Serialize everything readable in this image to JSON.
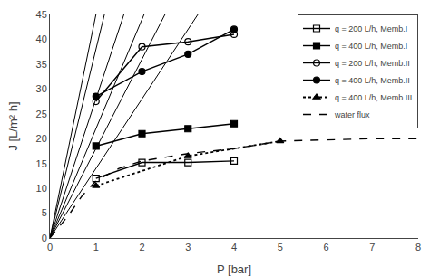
{
  "chart_data": {
    "type": "line",
    "xlabel": "P [bar]",
    "ylabel": "J [L/m² h]",
    "xlim": [
      0,
      8
    ],
    "ylim": [
      0,
      45
    ],
    "xticks": [
      0,
      1,
      2,
      3,
      4,
      5,
      6,
      7,
      8
    ],
    "yticks": [
      0,
      5,
      10,
      15,
      20,
      25,
      30,
      35,
      40,
      45
    ],
    "grid": false,
    "legend": "upper right",
    "series": [
      {
        "name": "q = 200 L/h, Memb.I",
        "x": [
          1,
          2,
          3,
          4
        ],
        "values": [
          12,
          15.2,
          15.2,
          15.5
        ],
        "color": "black",
        "marker": "square-open",
        "line_style": "solid"
      },
      {
        "name": "q = 400 L/h, Memb.I",
        "x": [
          1,
          2,
          3,
          4
        ],
        "values": [
          18.5,
          21,
          22,
          23
        ],
        "color": "black",
        "marker": "square",
        "line_style": "solid"
      },
      {
        "name": "q = 200 L/h, Memb.II",
        "x": [
          1,
          2,
          3,
          4
        ],
        "values": [
          27.5,
          38.5,
          39.5,
          41
        ],
        "color": "black",
        "marker": "circle-open",
        "line_style": "solid"
      },
      {
        "name": "q = 400 L/h, Memb.II",
        "x": [
          1,
          2,
          3,
          4
        ],
        "values": [
          28.5,
          33.5,
          37,
          42
        ],
        "color": "black",
        "marker": "circle",
        "line_style": "solid"
      },
      {
        "name": "q = 400 L/h, Memb.III",
        "x": [
          1,
          3,
          5
        ],
        "values": [
          10.5,
          16.5,
          19.5
        ],
        "color": "black",
        "marker": "triangle-up",
        "line_style": "dotted"
      },
      {
        "name": "water flux",
        "x": [
          0.0,
          0.4,
          0.7,
          1.0,
          1.5,
          2.0,
          3.0,
          4.0,
          5.0,
          6.0,
          7.0,
          8.0
        ],
        "values": [
          0.0,
          4.5,
          8.5,
          11.5,
          14.0,
          15.5,
          17.0,
          18.0,
          19.5,
          19.8,
          20.0,
          20.0
        ],
        "color": "black",
        "line_style": "dashed"
      },
      {
        "x": [
          0,
          1
        ],
        "values": [
          0,
          45
        ],
        "color": "black",
        "line_style": "solid"
      },
      {
        "x": [
          0,
          1.1842105263157894
        ],
        "values": [
          0,
          45
        ],
        "color": "black",
        "line_style": "solid"
      },
      {
        "x": [
          0,
          1.6071428571428572
        ],
        "values": [
          0,
          45
        ],
        "color": "black",
        "line_style": "solid"
      },
      {
        "x": [
          0,
          2.0454545454545454
        ],
        "values": [
          0,
          45
        ],
        "color": "black",
        "line_style": "solid"
      },
      {
        "x": [
          0,
          2.5
        ],
        "values": [
          0,
          45
        ],
        "color": "black",
        "line_style": "solid"
      },
      {
        "x": [
          0,
          3.2142857142857144
        ],
        "values": [
          0,
          45
        ],
        "color": "black",
        "line_style": "solid"
      }
    ]
  }
}
